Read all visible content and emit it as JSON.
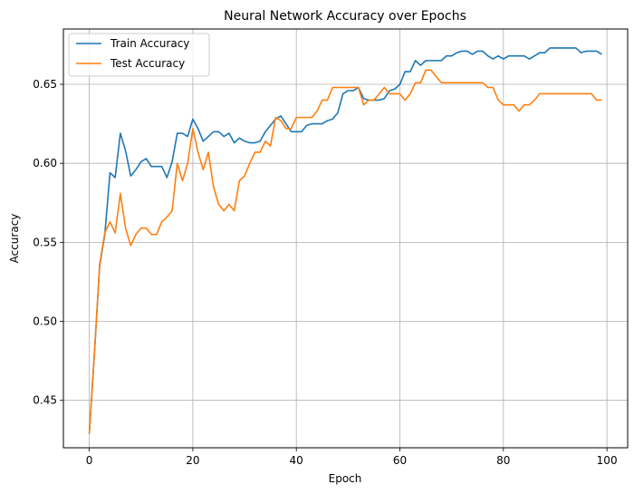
{
  "chart_data": {
    "type": "line",
    "title": "Neural Network Accuracy over Epochs",
    "xlabel": "Epoch",
    "ylabel": "Accuracy",
    "xlim": [
      -5,
      104
    ],
    "ylim": [
      0.42,
      0.685
    ],
    "xticks": [
      0,
      20,
      40,
      60,
      80,
      100
    ],
    "yticks": [
      0.45,
      0.5,
      0.55,
      0.6,
      0.65
    ],
    "ytick_labels": [
      "0.45",
      "0.50",
      "0.55",
      "0.60",
      "0.65"
    ],
    "grid": true,
    "legend_position": "top-left",
    "x": [
      0,
      1,
      2,
      3,
      4,
      5,
      6,
      7,
      8,
      9,
      10,
      11,
      12,
      13,
      14,
      15,
      16,
      17,
      18,
      19,
      20,
      21,
      22,
      23,
      24,
      25,
      26,
      27,
      28,
      29,
      30,
      31,
      32,
      33,
      34,
      35,
      36,
      37,
      38,
      39,
      40,
      41,
      42,
      43,
      44,
      45,
      46,
      47,
      48,
      49,
      50,
      51,
      52,
      53,
      54,
      55,
      56,
      57,
      58,
      59,
      60,
      61,
      62,
      63,
      64,
      65,
      66,
      67,
      68,
      69,
      70,
      71,
      72,
      73,
      74,
      75,
      76,
      77,
      78,
      79,
      80,
      81,
      82,
      83,
      84,
      85,
      86,
      87,
      88,
      89,
      90,
      91,
      92,
      93,
      94,
      95,
      96,
      97,
      98,
      99
    ],
    "series": [
      {
        "name": "Train Accuracy",
        "color": "#1f77b4",
        "values": [
          0.429,
          0.48,
          0.535,
          0.555,
          0.594,
          0.591,
          0.619,
          0.608,
          0.592,
          0.596,
          0.601,
          0.603,
          0.598,
          0.598,
          0.598,
          0.591,
          0.601,
          0.619,
          0.619,
          0.617,
          0.628,
          0.622,
          0.614,
          0.617,
          0.62,
          0.62,
          0.617,
          0.619,
          0.613,
          0.616,
          0.614,
          0.613,
          0.613,
          0.614,
          0.62,
          0.624,
          0.628,
          0.63,
          0.625,
          0.62,
          0.62,
          0.62,
          0.624,
          0.625,
          0.625,
          0.625,
          0.627,
          0.628,
          0.632,
          0.644,
          0.646,
          0.646,
          0.648,
          0.641,
          0.64,
          0.64,
          0.64,
          0.641,
          0.646,
          0.647,
          0.65,
          0.658,
          0.658,
          0.665,
          0.662,
          0.665,
          0.665,
          0.665,
          0.665,
          0.668,
          0.668,
          0.67,
          0.671,
          0.671,
          0.669,
          0.671,
          0.671,
          0.668,
          0.666,
          0.668,
          0.666,
          0.668,
          0.668,
          0.668,
          0.668,
          0.666,
          0.668,
          0.67,
          0.67,
          0.673,
          0.673,
          0.673,
          0.673,
          0.673,
          0.673,
          0.67,
          0.671,
          0.671,
          0.671,
          0.669
        ]
      },
      {
        "name": "Test Accuracy",
        "color": "#ff7f0e",
        "values": [
          0.429,
          0.48,
          0.536,
          0.556,
          0.563,
          0.556,
          0.581,
          0.559,
          0.548,
          0.555,
          0.559,
          0.559,
          0.555,
          0.555,
          0.563,
          0.566,
          0.57,
          0.6,
          0.589,
          0.6,
          0.622,
          0.607,
          0.596,
          0.607,
          0.585,
          0.574,
          0.57,
          0.574,
          0.57,
          0.589,
          0.592,
          0.6,
          0.607,
          0.607,
          0.614,
          0.611,
          0.629,
          0.627,
          0.622,
          0.622,
          0.629,
          0.629,
          0.629,
          0.629,
          0.633,
          0.64,
          0.64,
          0.648,
          0.648,
          0.648,
          0.648,
          0.648,
          0.648,
          0.637,
          0.64,
          0.64,
          0.644,
          0.648,
          0.644,
          0.644,
          0.644,
          0.64,
          0.644,
          0.651,
          0.651,
          0.659,
          0.659,
          0.655,
          0.651,
          0.651,
          0.651,
          0.651,
          0.651,
          0.651,
          0.651,
          0.651,
          0.651,
          0.648,
          0.648,
          0.64,
          0.637,
          0.637,
          0.637,
          0.633,
          0.637,
          0.637,
          0.64,
          0.644,
          0.644,
          0.644,
          0.644,
          0.644,
          0.644,
          0.644,
          0.644,
          0.644,
          0.644,
          0.644,
          0.64,
          0.64
        ]
      }
    ]
  }
}
